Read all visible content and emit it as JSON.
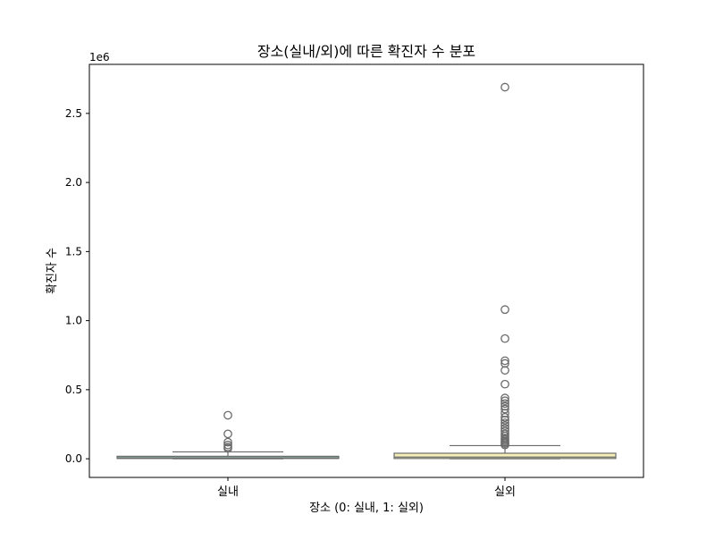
{
  "chart_data": {
    "type": "box",
    "title": "장소(실내/외)에 따른 확진자 수 분포",
    "xlabel": "장소 (0: 실내, 1: 실외)",
    "ylabel": "확진자 수",
    "y_scale_label": "1e6",
    "categories": [
      "실내",
      "실외"
    ],
    "ylim": [
      -0.135,
      2.855
    ],
    "yticks": [
      0.0,
      0.5,
      1.0,
      1.5,
      2.0,
      2.5
    ],
    "ytick_labels": [
      "0.0",
      "0.5",
      "1.0",
      "1.5",
      "2.0",
      "2.5"
    ],
    "grid": false,
    "series": [
      {
        "category": "실내",
        "color": "#8fbcae",
        "box": {
          "whisker_low": 0.0,
          "q1": 0.002,
          "median": 0.006,
          "q3": 0.018,
          "whisker_high": 0.05
        },
        "outliers": [
          0.075,
          0.085,
          0.1,
          0.12,
          0.18,
          0.315
        ]
      },
      {
        "category": "실외",
        "color": "#f5f0b8",
        "box": {
          "whisker_low": 0.0,
          "q1": 0.002,
          "median": 0.012,
          "q3": 0.04,
          "whisker_high": 0.095
        },
        "outliers": [
          0.1,
          0.11,
          0.12,
          0.13,
          0.14,
          0.15,
          0.165,
          0.18,
          0.2,
          0.22,
          0.24,
          0.26,
          0.28,
          0.3,
          0.33,
          0.36,
          0.38,
          0.4,
          0.42,
          0.44,
          0.54,
          0.64,
          0.69,
          0.71,
          0.87,
          1.08,
          2.69
        ]
      }
    ],
    "colors": {
      "whisker": "#6b6b6b",
      "box_edge": "#6b6b6b",
      "axis": "#000000"
    }
  }
}
